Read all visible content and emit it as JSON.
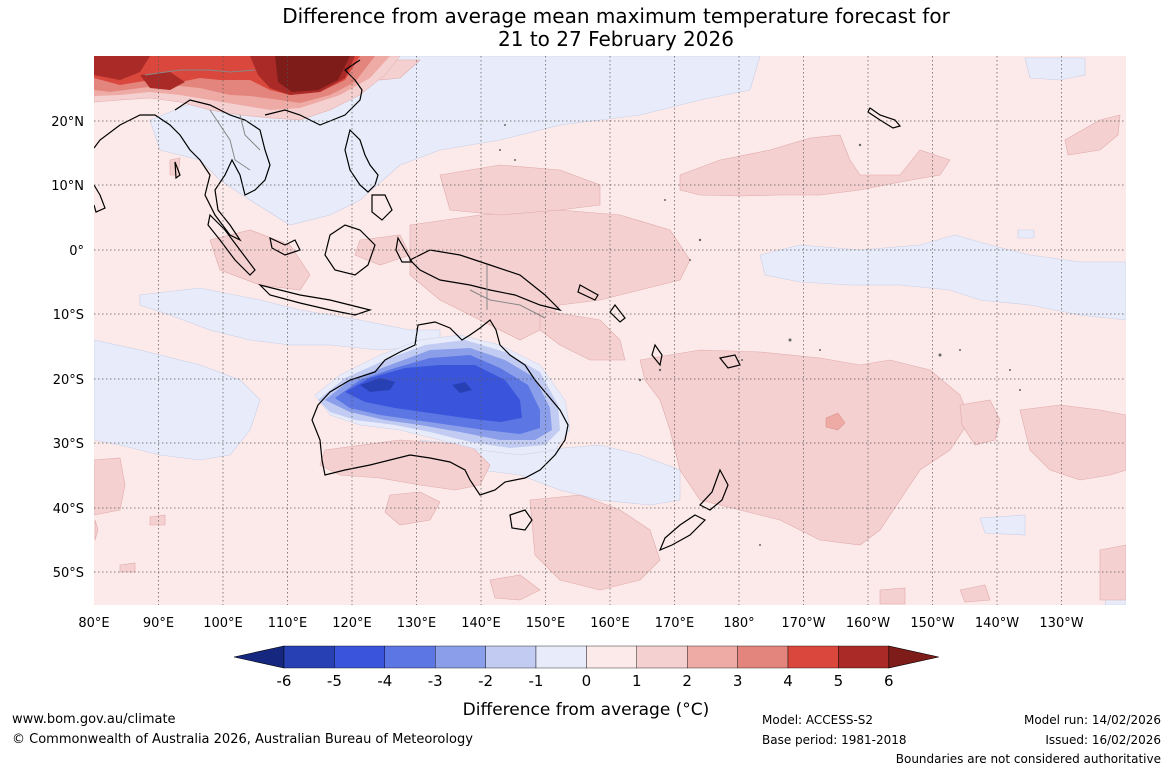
{
  "title_line1": "Difference from average mean maximum temperature forecast for",
  "title_line2": "21 to 27 February 2026",
  "lat_labels": [
    "20°N",
    "10°N",
    "0°",
    "10°S",
    "20°S",
    "30°S",
    "40°S",
    "50°S"
  ],
  "lon_labels": [
    "80°E",
    "90°E",
    "100°E",
    "110°E",
    "120°E",
    "130°E",
    "140°E",
    "150°E",
    "160°E",
    "170°E",
    "180°",
    "170°W",
    "160°W",
    "150°W",
    "140°W",
    "130°W"
  ],
  "legend": {
    "ticks": [
      "-6",
      "-5",
      "-4",
      "-3",
      "-2",
      "-1",
      "0",
      "1",
      "2",
      "3",
      "4",
      "5",
      "6"
    ],
    "colors": [
      "#15277f",
      "#2740b4",
      "#3a55dc",
      "#5c76e4",
      "#8a9ee9",
      "#c2cbf2",
      "#e8ecfa",
      "#fce9e9",
      "#f5d0d0",
      "#eeaaa4",
      "#e3857d",
      "#d9473d",
      "#a92a26",
      "#7e1c1a"
    ],
    "label": "Difference from average (°C)"
  },
  "footer": {
    "website": "www.bom.gov.au/climate",
    "copyright": "© Commonwealth of Australia 2026, Australian Bureau of Meteorology",
    "model": "Model: ACCESS-S2",
    "base_period": "Base period: 1981-2018",
    "model_run": "Model run: 14/02/2026",
    "issued": "Issued: 16/02/2026",
    "disclaimer": "Boundaries are not considered authoritative"
  }
}
